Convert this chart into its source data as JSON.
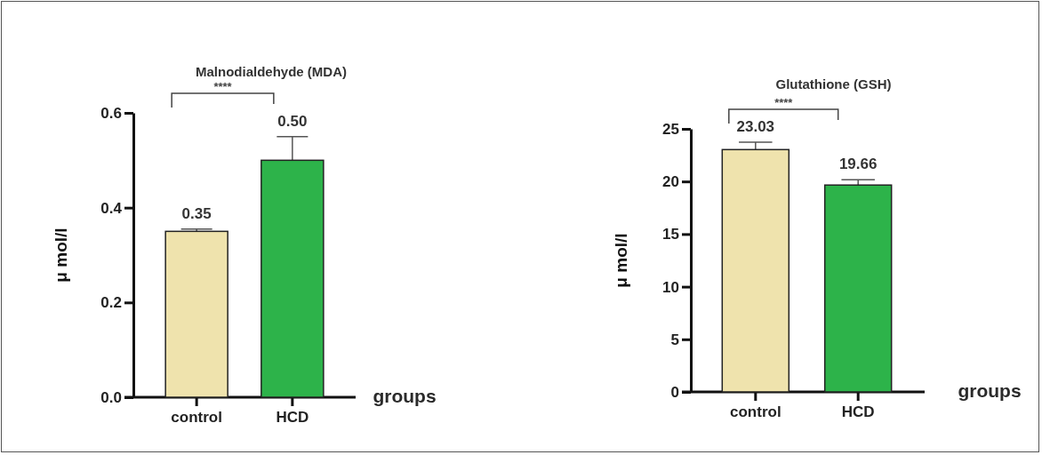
{
  "chart_data": [
    {
      "type": "bar",
      "title": "Malnodialdehyde  (MDA)",
      "xlabel": "groups",
      "ylabel": "μ mol/l",
      "categories": [
        "control",
        "HCD"
      ],
      "values": [
        0.35,
        0.5
      ],
      "colors": [
        "#efe3ad",
        "#2db34a"
      ],
      "errors": [
        0.005,
        0.05
      ],
      "value_labels": [
        "0.35",
        "0.50"
      ],
      "ylim": [
        0,
        0.6
      ],
      "yticks": [
        {
          "value": 0,
          "label": "0.0"
        },
        0.2,
        0.4,
        0.6
      ],
      "annotations": [
        "****"
      ]
    },
    {
      "type": "bar",
      "title": "Glutathione (GSH)",
      "xlabel": "groups",
      "ylabel": "μ mol/l",
      "categories": [
        "control",
        "HCD"
      ],
      "values": [
        23.03,
        19.66
      ],
      "colors": [
        "#efe3ad",
        "#2db34a"
      ],
      "errors": [
        0.7,
        0.5
      ],
      "value_labels": [
        "23.03",
        "19.66"
      ],
      "ylim": [
        0,
        25
      ],
      "yticks": [
        0,
        5,
        10,
        15,
        20,
        25
      ],
      "annotations": [
        "****"
      ]
    }
  ]
}
